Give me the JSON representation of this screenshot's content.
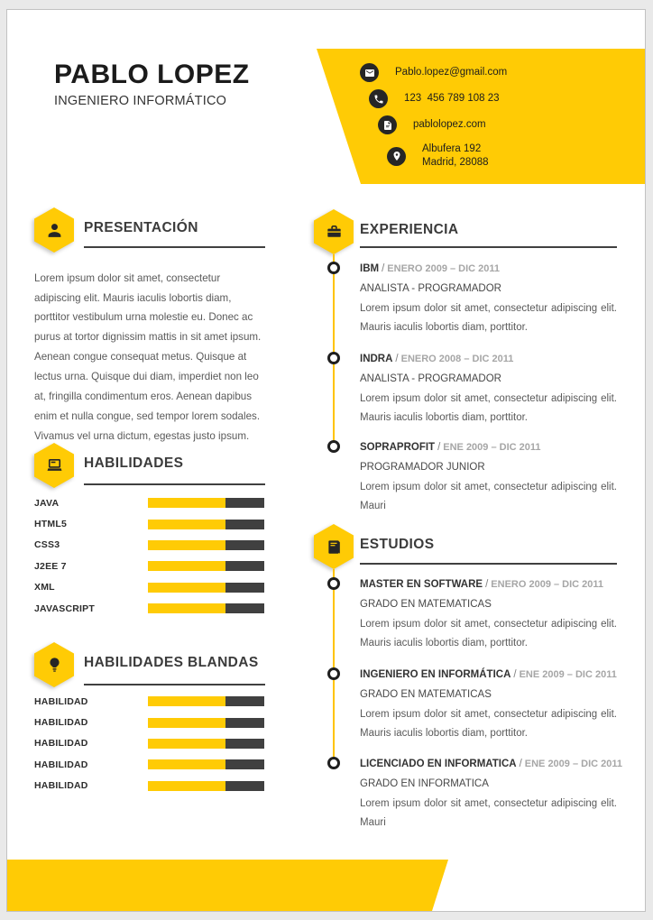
{
  "header": {
    "name": "PABLO LOPEZ",
    "role": "INGENIERO INFORMÁTICO"
  },
  "contact": {
    "items": [
      {
        "icon": "email-icon",
        "lines": [
          "Pablo.lopez@gmail.com"
        ]
      },
      {
        "icon": "phone-icon",
        "lines": [
          "123  456 789 108 23"
        ]
      },
      {
        "icon": "website-icon",
        "lines": [
          "pablolopez.com"
        ]
      },
      {
        "icon": "location-icon",
        "lines": [
          "Albufera 192",
          "Madrid, 28088"
        ]
      }
    ]
  },
  "presentacion": {
    "title": "PRESENTACIÓN",
    "body": "Lorem ipsum dolor sit amet, consectetur adipiscing elit. Mauris iaculis lobortis diam, porttitor vestibulum urna molestie eu. Donec ac purus at tortor dignissim mattis in sit amet ipsum. Aenean congue consequat metus. Quisque at lectus urna. Quisque dui diam, imperdiet non leo at, fringilla condimentum eros. Aenean dapibus enim et nulla congue, sed tempor lorem sodales. Vivamus vel urna dictum, egestas justo ipsum."
  },
  "habilidades": {
    "title": "HABILIDADES",
    "skills": [
      {
        "label": "JAVA",
        "percent": 67
      },
      {
        "label": "HTML5",
        "percent": 67
      },
      {
        "label": "CSS3",
        "percent": 67
      },
      {
        "label": "J2EE 7",
        "percent": 67
      },
      {
        "label": "XML",
        "percent": 67
      },
      {
        "label": "JAVASCRIPT",
        "percent": 67
      }
    ]
  },
  "habilidades_blandas": {
    "title": "HABILIDADES BLANDAS",
    "skills": [
      {
        "label": "HABILIDAD",
        "percent": 67
      },
      {
        "label": "HABILIDAD",
        "percent": 67
      },
      {
        "label": "HABILIDAD",
        "percent": 67
      },
      {
        "label": "HABILIDAD",
        "percent": 67
      },
      {
        "label": "HABILIDAD",
        "percent": 67
      }
    ]
  },
  "experiencia": {
    "title": "EXPERIENCIA",
    "entries": [
      {
        "company": "IBM",
        "sep": "/",
        "dates": "ENERO 2009 – DIC 2011",
        "role": "ANALISTA - PROGRAMADOR",
        "description": "Lorem ipsum dolor sit amet, consectetur adipiscing elit. Mauris iaculis lobortis diam, porttitor."
      },
      {
        "company": "INDRA",
        "sep": "/",
        "dates": "ENERO 2008 – DIC 2011",
        "role": "ANALISTA - PROGRAMADOR",
        "description": "Lorem ipsum dolor sit amet, consectetur adipiscing elit. Mauris iaculis lobortis diam, porttitor."
      },
      {
        "company": "SOPRAPROFIT",
        "sep": "/",
        "dates": "ENE 2009 – DIC 2011",
        "role": "PROGRAMADOR JUNIOR",
        "description": "Lorem ipsum dolor sit amet, consectetur adipiscing elit. Mauri"
      }
    ]
  },
  "estudios": {
    "title": "ESTUDIOS",
    "entries": [
      {
        "degree": "MASTER EN SOFTWARE",
        "sep": "/",
        "dates": "ENERO 2009 – DIC 2011",
        "subtitle": "GRADO EN MATEMATICAS",
        "description": "Lorem ipsum dolor sit amet, consectetur adipiscing elit. Mauris iaculis lobortis diam, porttitor."
      },
      {
        "degree": "INGENIERO EN INFORMÁTICA",
        "sep": "/",
        "dates": "ENE 2009 – DIC 2011",
        "subtitle": "GRADO EN MATEMATICAS",
        "description": "Lorem ipsum dolor sit amet, consectetur adipiscing elit. Mauris iaculis lobortis diam, porttitor."
      },
      {
        "degree": "LICENCIADO EN INFORMATICA",
        "sep": "/",
        "dates": "ENE 2009 – DIC 2011",
        "subtitle": "GRADO EN INFORMATICA",
        "description": "Lorem ipsum dolor sit amet, consectetur adipiscing elit. Mauri"
      }
    ]
  },
  "colors": {
    "accent_yellow": "#ffcb05",
    "bar_dark": "#404040",
    "icon_circle_dark": "#262626"
  }
}
